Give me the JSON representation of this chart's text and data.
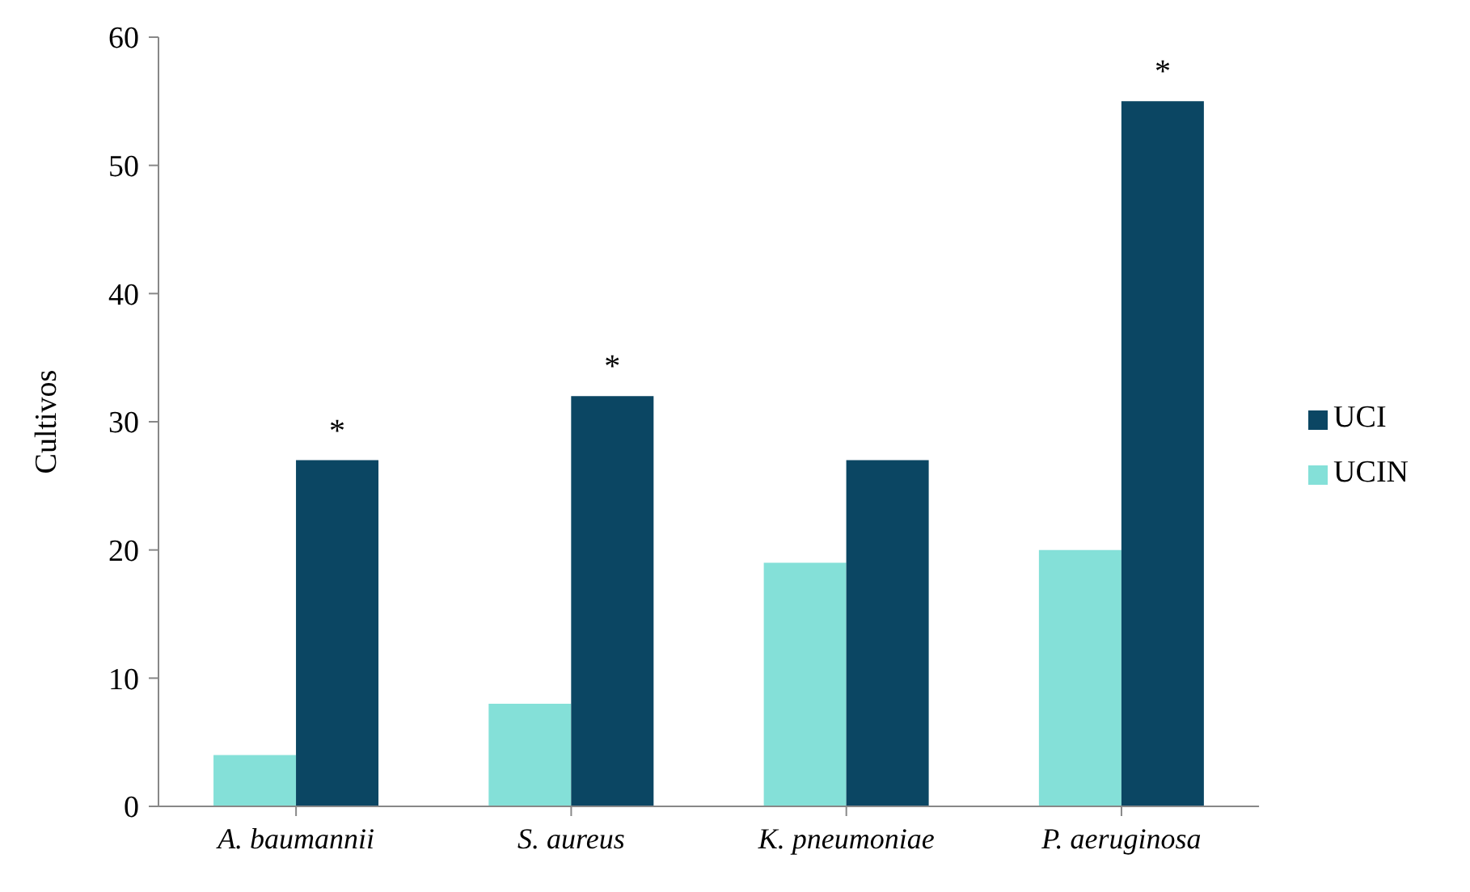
{
  "chart_data": {
    "type": "bar",
    "ylabel": "Cultivos",
    "categories": [
      "A. baumannii",
      "S. aureus",
      "K. pneumoniae",
      "P. aeruginosa"
    ],
    "series": [
      {
        "name": "UCIN",
        "color": "#84e0d8",
        "values": [
          4,
          8,
          19,
          20
        ]
      },
      {
        "name": "UCI",
        "color": "#0b4663",
        "values": [
          27,
          32,
          27,
          55
        ]
      }
    ],
    "ylim": [
      0,
      60
    ],
    "yticks": [
      0,
      10,
      20,
      30,
      40,
      50,
      60
    ],
    "grid": false,
    "legend": "right",
    "annotations": [
      {
        "text": "*",
        "x": "A. baumannii",
        "y": 27
      },
      {
        "text": "*",
        "x": "S. aureus",
        "y": 32
      },
      {
        "text": "*",
        "x": "P. aeruginosa",
        "y": 55
      }
    ]
  }
}
